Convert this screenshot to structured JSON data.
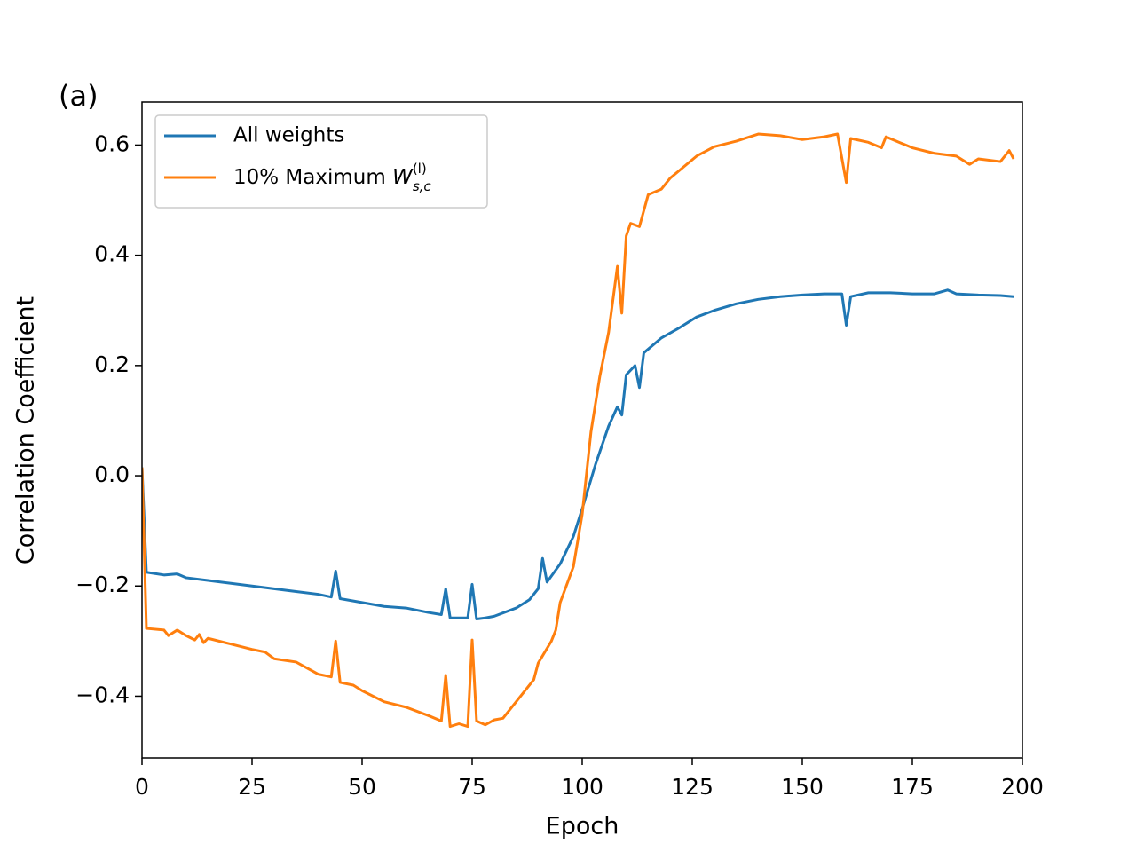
{
  "chart_data": {
    "type": "line",
    "annotation": "(a)",
    "xlabel": "Epoch",
    "ylabel": "Correlation Coefficient",
    "xlim": [
      0,
      200
    ],
    "ylim": [
      -0.512,
      0.678
    ],
    "xticks": [
      0,
      25,
      50,
      75,
      100,
      125,
      150,
      175,
      200
    ],
    "yticks": [
      {
        "value": -0.4,
        "label": "−0.4"
      },
      {
        "value": -0.2,
        "label": "−0.2"
      },
      {
        "value": 0,
        "label": "0.0"
      },
      0.2,
      0.4,
      0.6
    ],
    "legend": "upper left",
    "series": [
      {
        "name": "All weights",
        "color": "#1f77b4",
        "x": [
          0,
          1,
          5,
          8,
          10,
          15,
          20,
          25,
          30,
          35,
          40,
          43,
          44,
          45,
          50,
          55,
          60,
          65,
          68,
          69,
          70,
          72,
          74,
          75,
          76,
          78,
          80,
          85,
          88,
          90,
          91,
          92,
          95,
          98,
          100,
          103,
          106,
          108,
          109,
          110,
          112,
          113,
          114,
          118,
          122,
          126,
          130,
          135,
          140,
          145,
          150,
          155,
          159,
          160,
          161,
          165,
          170,
          175,
          180,
          183,
          185,
          190,
          195,
          198
        ],
        "values": [
          0.015,
          -0.175,
          -0.18,
          -0.178,
          -0.185,
          -0.19,
          -0.195,
          -0.2,
          -0.205,
          -0.21,
          -0.215,
          -0.22,
          -0.173,
          -0.223,
          -0.23,
          -0.237,
          -0.24,
          -0.248,
          -0.252,
          -0.205,
          -0.258,
          -0.258,
          -0.258,
          -0.197,
          -0.26,
          -0.258,
          -0.255,
          -0.24,
          -0.225,
          -0.205,
          -0.15,
          -0.193,
          -0.16,
          -0.11,
          -0.06,
          0.02,
          0.09,
          0.125,
          0.11,
          0.183,
          0.2,
          0.16,
          0.223,
          0.25,
          0.268,
          0.288,
          0.3,
          0.312,
          0.32,
          0.325,
          0.328,
          0.33,
          0.33,
          0.273,
          0.325,
          0.332,
          0.332,
          0.33,
          0.33,
          0.337,
          0.33,
          0.328,
          0.327,
          0.325
        ]
      },
      {
        "name": "10% Maximum W_{s,c}^{(l)}",
        "color": "#ff7f0e",
        "x": [
          0,
          1,
          5,
          6,
          8,
          10,
          12,
          13,
          14,
          15,
          20,
          25,
          28,
          30,
          35,
          40,
          43,
          44,
          45,
          48,
          50,
          55,
          60,
          65,
          68,
          69,
          70,
          72,
          74,
          75,
          76,
          78,
          80,
          82,
          85,
          89,
          90,
          93,
          94,
          95,
          98,
          100,
          102,
          104,
          106,
          108,
          109,
          110,
          111,
          113,
          115,
          118,
          120,
          123,
          126,
          130,
          135,
          140,
          145,
          150,
          155,
          158,
          160,
          161,
          165,
          168,
          169,
          172,
          175,
          180,
          185,
          188,
          190,
          195,
          197,
          198
        ],
        "values": [
          0.015,
          -0.277,
          -0.28,
          -0.29,
          -0.28,
          -0.29,
          -0.298,
          -0.288,
          -0.303,
          -0.295,
          -0.305,
          -0.315,
          -0.32,
          -0.332,
          -0.338,
          -0.36,
          -0.365,
          -0.3,
          -0.375,
          -0.38,
          -0.39,
          -0.41,
          -0.42,
          -0.435,
          -0.445,
          -0.362,
          -0.455,
          -0.45,
          -0.455,
          -0.298,
          -0.445,
          -0.452,
          -0.443,
          -0.44,
          -0.41,
          -0.37,
          -0.34,
          -0.3,
          -0.28,
          -0.23,
          -0.165,
          -0.07,
          0.08,
          0.18,
          0.26,
          0.38,
          0.295,
          0.435,
          0.458,
          0.452,
          0.51,
          0.52,
          0.54,
          0.56,
          0.58,
          0.597,
          0.607,
          0.62,
          0.617,
          0.61,
          0.615,
          0.62,
          0.532,
          0.612,
          0.605,
          0.595,
          0.615,
          0.605,
          0.595,
          0.585,
          0.58,
          0.565,
          0.575,
          0.57,
          0.59,
          0.575
        ]
      }
    ]
  }
}
